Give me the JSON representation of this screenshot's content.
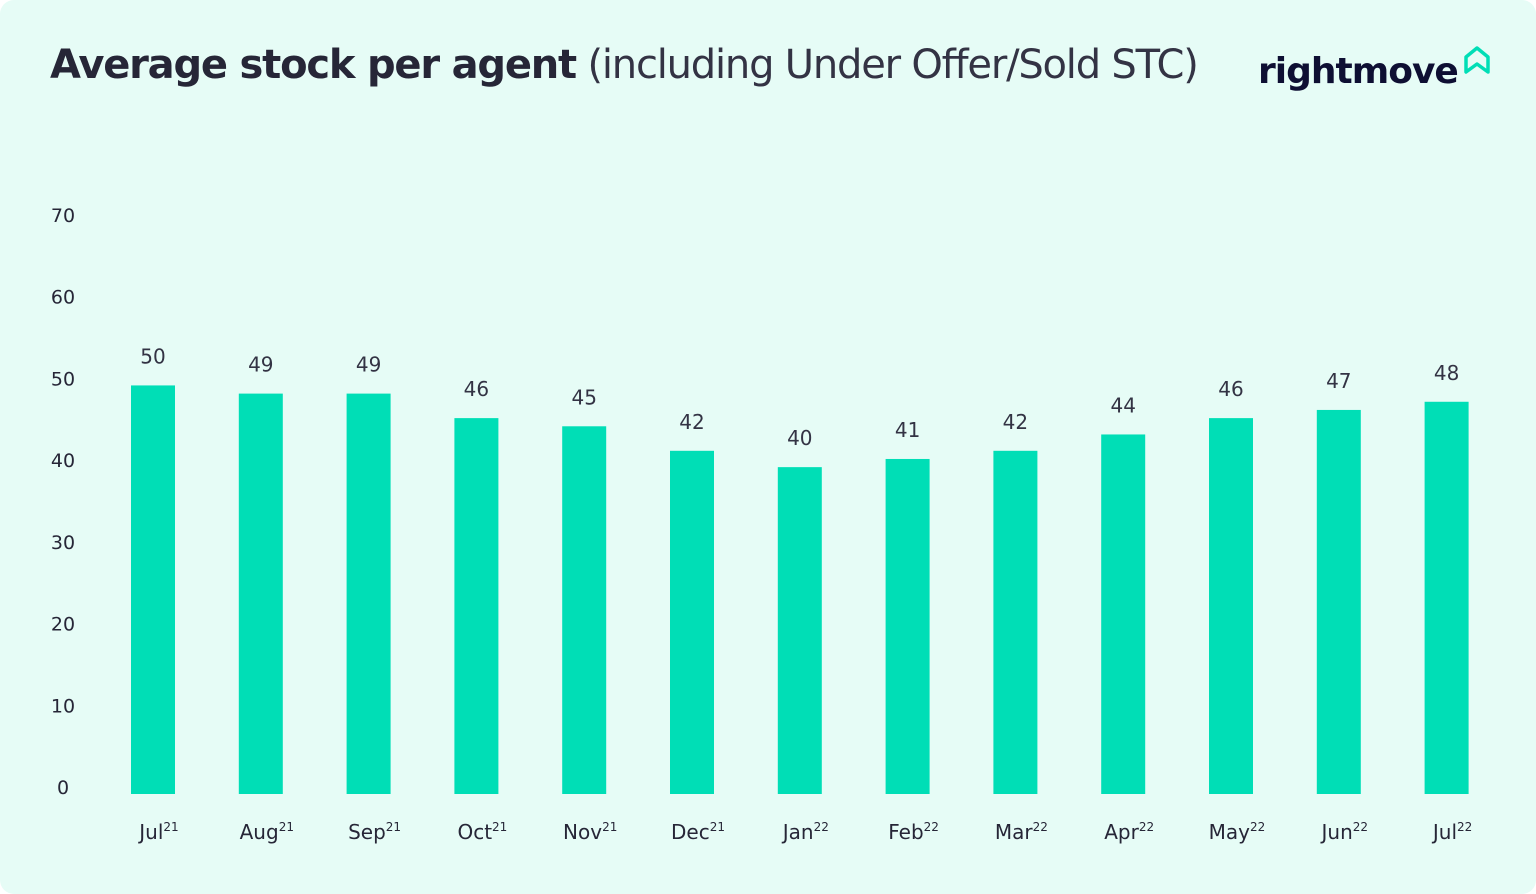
{
  "title": {
    "bold": "Average stock per agent",
    "sub": "(including Under Offer/Sold STC)"
  },
  "logo": {
    "text": "rightmove",
    "icon": "house-outline-icon"
  },
  "colors": {
    "background": "#e6fcf6",
    "bar": "#00deb6",
    "text": "#262637",
    "logo_text": "#0e0f33",
    "logo_icon": "#00deb6"
  },
  "chart_data": {
    "type": "bar",
    "title": "Average stock per agent (including Under Offer/Sold STC)",
    "xlabel": "",
    "ylabel": "",
    "ylim": [
      0,
      70
    ],
    "yticks": [
      0,
      10,
      20,
      30,
      40,
      50,
      60,
      70
    ],
    "grid": false,
    "data_labels": true,
    "categories": [
      {
        "month": "Jul",
        "year": "21"
      },
      {
        "month": "Aug",
        "year": "21"
      },
      {
        "month": "Sep",
        "year": "21"
      },
      {
        "month": "Oct",
        "year": "21"
      },
      {
        "month": "Nov",
        "year": "21"
      },
      {
        "month": "Dec",
        "year": "21"
      },
      {
        "month": "Jan",
        "year": "22"
      },
      {
        "month": "Feb",
        "year": "22"
      },
      {
        "month": "Mar",
        "year": "22"
      },
      {
        "month": "Apr",
        "year": "22"
      },
      {
        "month": "May",
        "year": "22"
      },
      {
        "month": "Jun",
        "year": "22"
      },
      {
        "month": "Jul",
        "year": "22"
      }
    ],
    "values": [
      50,
      49,
      49,
      46,
      45,
      42,
      40,
      41,
      42,
      44,
      46,
      47,
      48
    ]
  }
}
